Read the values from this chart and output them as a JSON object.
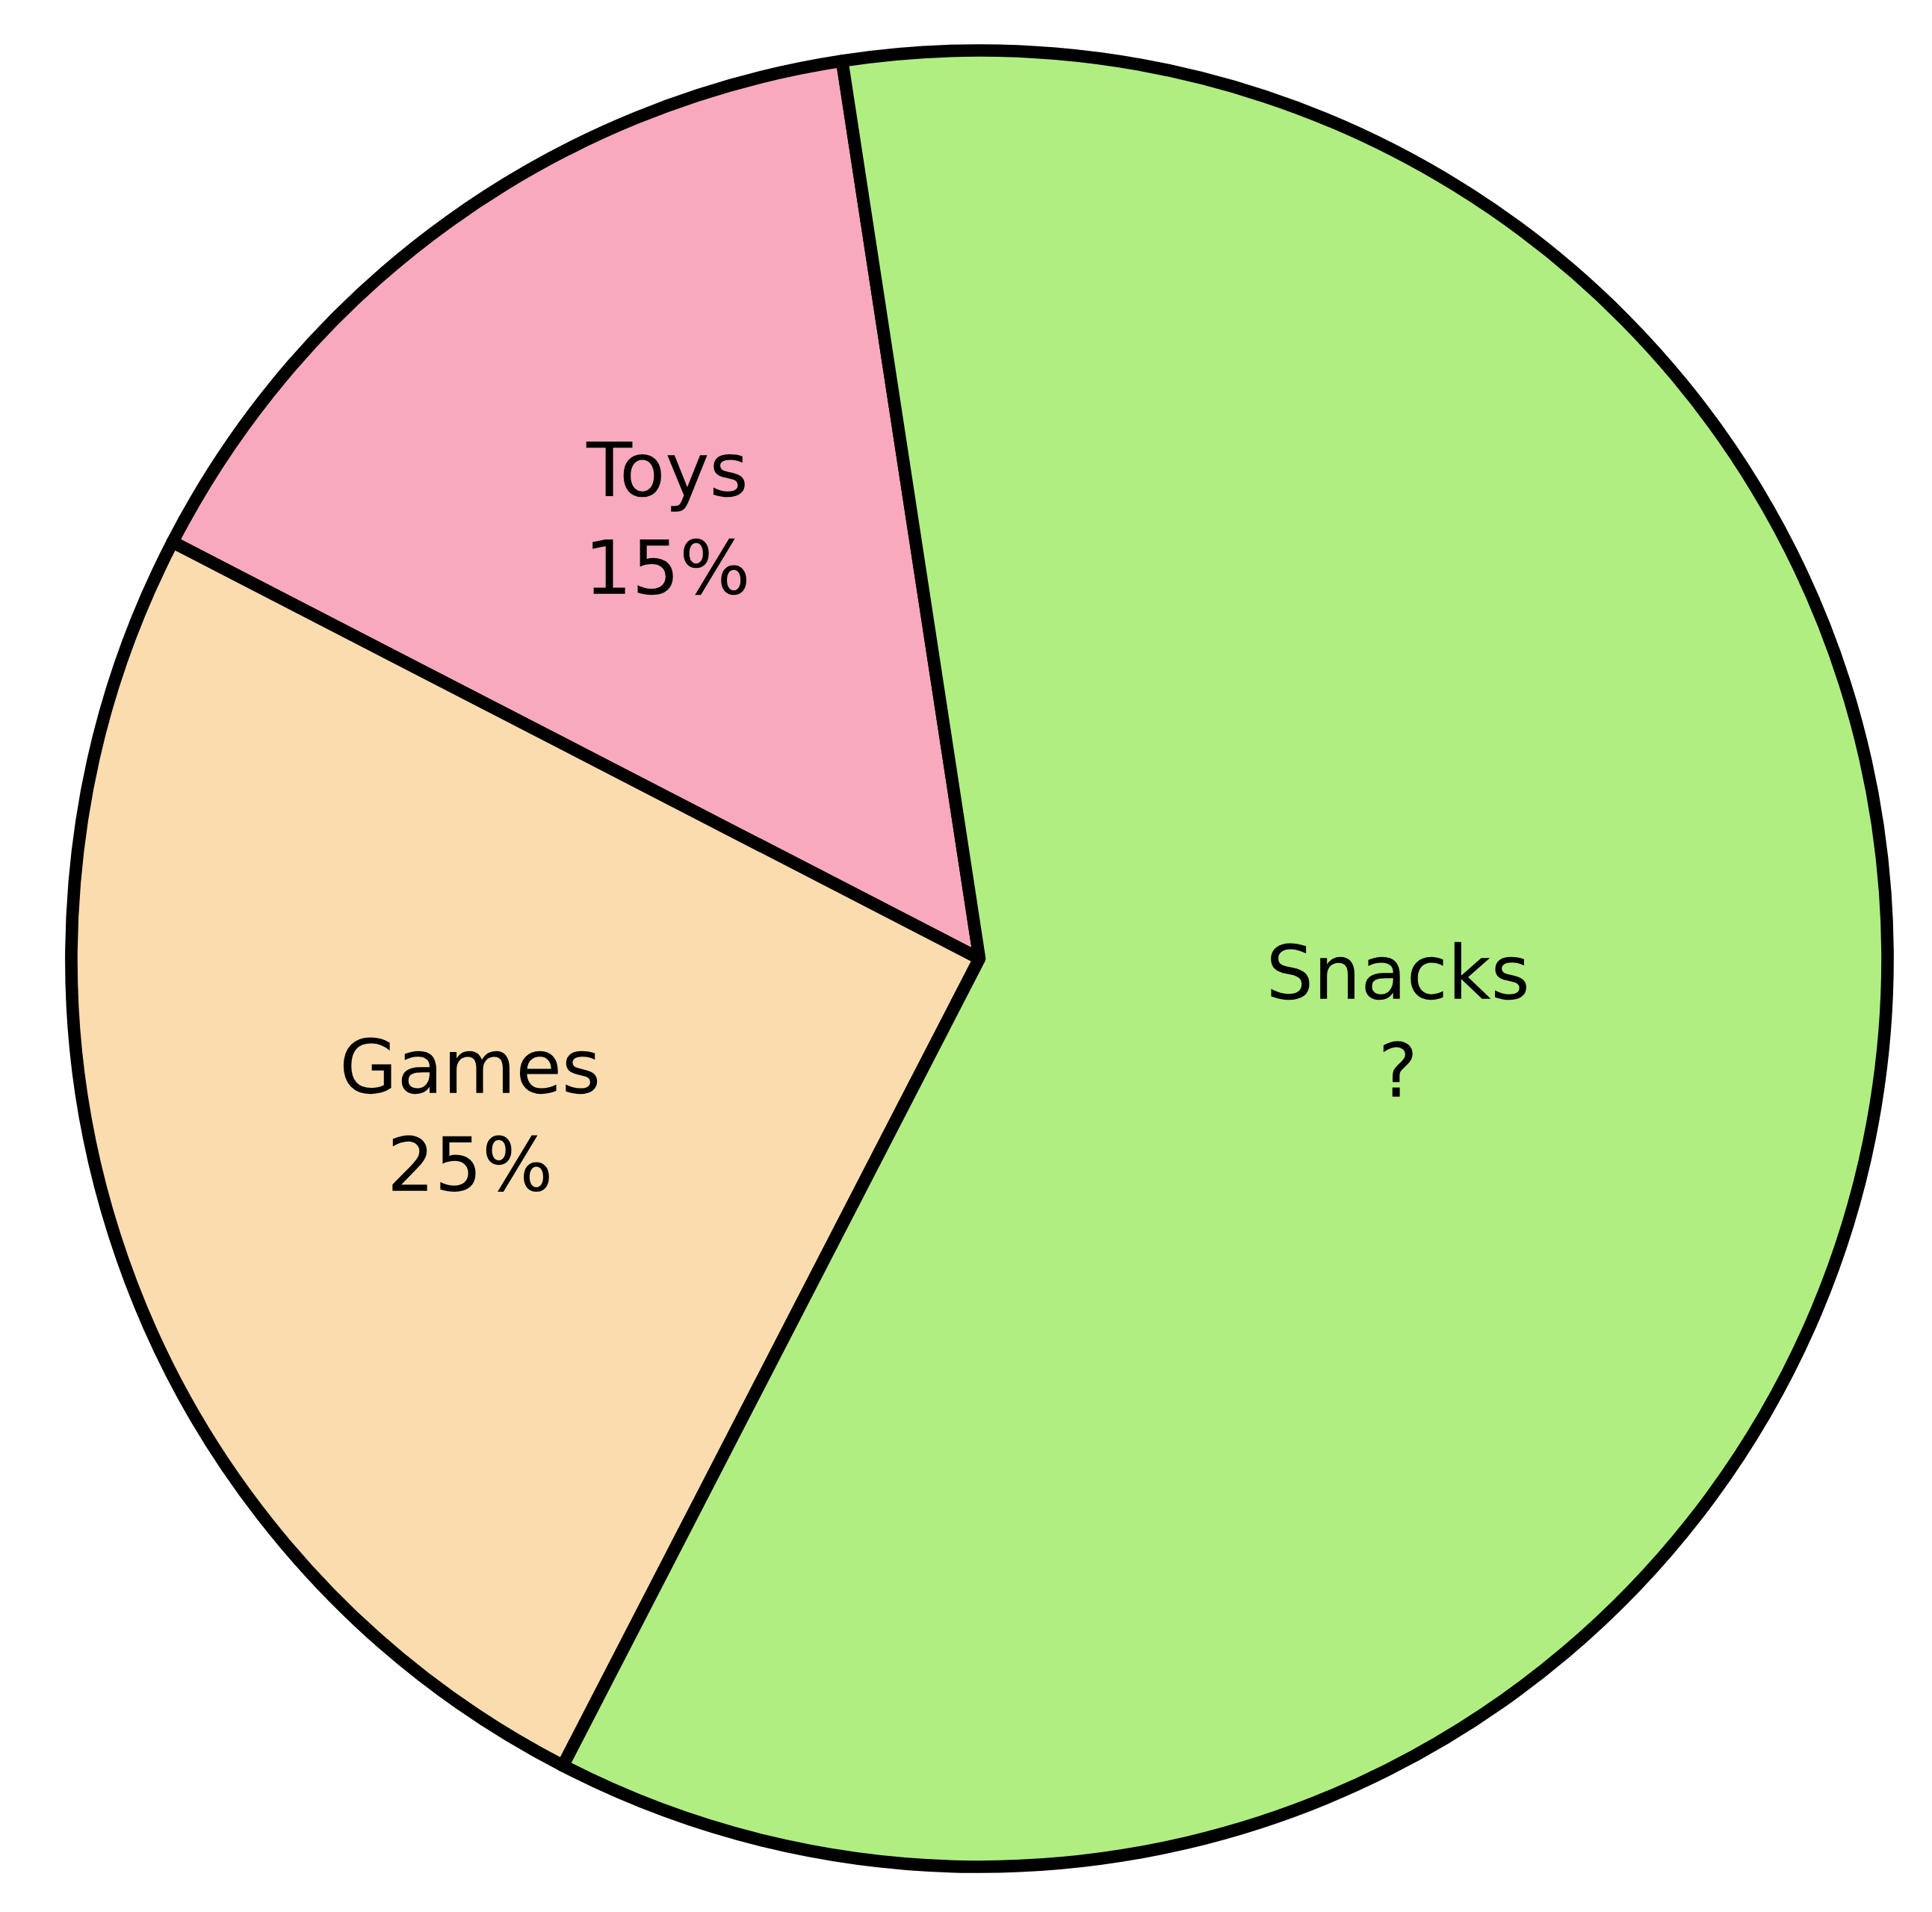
{
  "chart_data": {
    "type": "pie",
    "categories": [
      "Toys",
      "Games",
      "Snacks"
    ],
    "values": [
      15,
      25,
      60
    ],
    "value_labels": [
      "15%",
      "25%",
      "?"
    ],
    "colors": [
      "#f8a9be",
      "#fbdcae",
      "#b0ee82"
    ]
  }
}
